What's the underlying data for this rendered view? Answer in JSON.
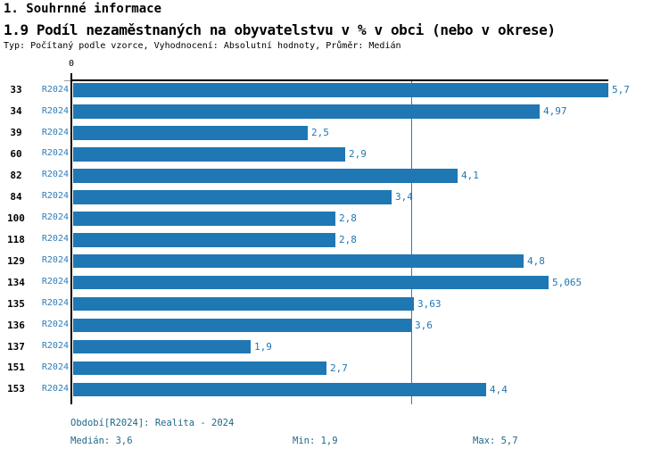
{
  "header": {
    "section_title": "1. Souhrnné informace",
    "chart_title": "1.9 Podíl nezaměstnaných na obyvatelstvu v % v obci (nebo v okrese)",
    "subtitle": "Typ: Počítaný podle vzorce, Vyhodnocení: Absolutní hodnoty, Průměr: Medián"
  },
  "chart_data": {
    "type": "bar",
    "orientation": "horizontal",
    "title": "1.9 Podíl nezaměstnaných na obyvatelstvu v % v obci (nebo v okrese)",
    "x_axis": {
      "zero_tick_label": "0",
      "min": 0,
      "max": 5.7
    },
    "grid": false,
    "median_reference_line": 3.6,
    "series_name": "R2024",
    "categories": [
      "33",
      "34",
      "39",
      "60",
      "82",
      "84",
      "100",
      "118",
      "129",
      "134",
      "135",
      "136",
      "137",
      "151",
      "153"
    ],
    "rows": [
      {
        "category": "33",
        "series": "R2024",
        "value": 5.7,
        "value_label": "5,7"
      },
      {
        "category": "34",
        "series": "R2024",
        "value": 4.97,
        "value_label": "4,97"
      },
      {
        "category": "39",
        "series": "R2024",
        "value": 2.5,
        "value_label": "2,5"
      },
      {
        "category": "60",
        "series": "R2024",
        "value": 2.9,
        "value_label": "2,9"
      },
      {
        "category": "82",
        "series": "R2024",
        "value": 4.1,
        "value_label": "4,1"
      },
      {
        "category": "84",
        "series": "R2024",
        "value": 3.4,
        "value_label": "3,4"
      },
      {
        "category": "100",
        "series": "R2024",
        "value": 2.8,
        "value_label": "2,8"
      },
      {
        "category": "118",
        "series": "R2024",
        "value": 2.8,
        "value_label": "2,8"
      },
      {
        "category": "129",
        "series": "R2024",
        "value": 4.8,
        "value_label": "4,8"
      },
      {
        "category": "134",
        "series": "R2024",
        "value": 5.065,
        "value_label": "5,065"
      },
      {
        "category": "135",
        "series": "R2024",
        "value": 3.63,
        "value_label": "3,63"
      },
      {
        "category": "136",
        "series": "R2024",
        "value": 3.6,
        "value_label": "3,6"
      },
      {
        "category": "137",
        "series": "R2024",
        "value": 1.9,
        "value_label": "1,9"
      },
      {
        "category": "151",
        "series": "R2024",
        "value": 2.7,
        "value_label": "2,7"
      },
      {
        "category": "153",
        "series": "R2024",
        "value": 4.4,
        "value_label": "4,4"
      }
    ]
  },
  "footer": {
    "period": "Období[R2024]: Realita - 2024",
    "median": "Medián: 3,6",
    "min": "Min: 1,9",
    "max": "Max: 5,7"
  },
  "colors": {
    "bar_fill": "#1f77b4",
    "series_label_text": "#2e7cb8",
    "value_label_text": "#1f77b4",
    "median_line": "#2e7cb8",
    "footer_text": "#206988",
    "axis": "#000000"
  }
}
